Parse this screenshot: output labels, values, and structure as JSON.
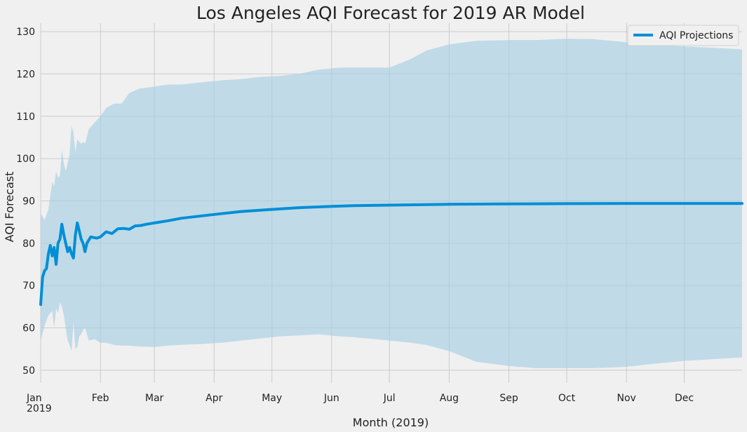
{
  "chart_data": {
    "type": "line",
    "title": "Los Angeles AQI Forecast for 2019 AR Model",
    "xlabel": "Month (2019)",
    "ylabel": "AQI Forecast",
    "x_range": [
      "2019-01-01",
      "2019-12-31"
    ],
    "ylim": [
      47,
      132
    ],
    "y_ticks": [
      50,
      60,
      70,
      80,
      90,
      100,
      110,
      120,
      130
    ],
    "x_ticks": [
      {
        "label": "Jan",
        "sublabel": "2019",
        "date": "2019-01-01"
      },
      {
        "label": "Feb",
        "date": "2019-02-01"
      },
      {
        "label": "Mar",
        "date": "2019-03-01"
      },
      {
        "label": "Apr",
        "date": "2019-04-01"
      },
      {
        "label": "May",
        "date": "2019-05-01"
      },
      {
        "label": "Jun",
        "date": "2019-06-01"
      },
      {
        "label": "Jul",
        "date": "2019-07-01"
      },
      {
        "label": "Aug",
        "date": "2019-08-01"
      },
      {
        "label": "Sep",
        "date": "2019-09-01"
      },
      {
        "label": "Oct",
        "date": "2019-10-01"
      },
      {
        "label": "Nov",
        "date": "2019-11-01"
      },
      {
        "label": "Dec",
        "date": "2019-12-01"
      }
    ],
    "grid": true,
    "legend": {
      "placement": "top-right",
      "entries": [
        "AQI Projections"
      ]
    },
    "colors": {
      "line": "#008fd5",
      "band": "#a6cee3",
      "background": "#f0f0f0",
      "grid": "#cbcbcb"
    },
    "series": [
      {
        "name": "AQI Projections",
        "x": [
          "2019-01-01",
          "2019-01-02",
          "2019-01-03",
          "2019-01-04",
          "2019-01-05",
          "2019-01-06",
          "2019-01-07",
          "2019-01-08",
          "2019-01-09",
          "2019-01-10",
          "2019-01-11",
          "2019-01-12",
          "2019-01-13",
          "2019-01-14",
          "2019-01-15",
          "2019-01-16",
          "2019-01-17",
          "2019-01-18",
          "2019-01-19",
          "2019-01-20",
          "2019-01-21",
          "2019-01-22",
          "2019-01-23",
          "2019-01-24",
          "2019-01-25",
          "2019-01-27",
          "2019-01-30",
          "2019-02-01",
          "2019-02-04",
          "2019-02-07",
          "2019-02-10",
          "2019-02-13",
          "2019-02-16",
          "2019-02-19",
          "2019-02-22",
          "2019-02-25",
          "2019-03-01",
          "2019-03-08",
          "2019-03-15",
          "2019-04-01",
          "2019-04-15",
          "2019-05-01",
          "2019-05-15",
          "2019-06-01",
          "2019-06-15",
          "2019-07-01",
          "2019-08-01",
          "2019-09-01",
          "2019-10-01",
          "2019-11-01",
          "2019-12-01",
          "2019-12-31"
        ],
        "values": [
          65.5,
          72,
          73.5,
          74,
          77.5,
          79.5,
          77,
          79,
          75,
          80,
          81,
          84.5,
          82,
          80,
          78,
          79,
          77.5,
          76.5,
          82,
          84.8,
          83,
          81,
          80,
          78,
          80,
          81.5,
          81.2,
          81.5,
          82.7,
          82.3,
          83.4,
          83.5,
          83.3,
          84.1,
          84.2,
          84.5,
          84.8,
          85.3,
          85.9,
          86.8,
          87.5,
          88,
          88.4,
          88.7,
          88.9,
          89.0,
          89.2,
          89.3,
          89.35,
          89.4,
          89.4,
          89.4
        ]
      }
    ],
    "confidence_band": {
      "x": [
        "2019-01-01",
        "2019-01-03",
        "2019-01-05",
        "2019-01-07",
        "2019-01-08",
        "2019-01-09",
        "2019-01-10",
        "2019-01-11",
        "2019-01-12",
        "2019-01-13",
        "2019-01-14",
        "2019-01-15",
        "2019-01-16",
        "2019-01-17",
        "2019-01-18",
        "2019-01-19",
        "2019-01-20",
        "2019-01-21",
        "2019-01-22",
        "2019-01-23",
        "2019-01-24",
        "2019-01-26",
        "2019-01-29",
        "2019-02-01",
        "2019-02-04",
        "2019-02-08",
        "2019-02-12",
        "2019-02-16",
        "2019-02-21",
        "2019-03-01",
        "2019-03-08",
        "2019-03-15",
        "2019-03-25",
        "2019-04-05",
        "2019-04-15",
        "2019-04-25",
        "2019-05-05",
        "2019-05-15",
        "2019-05-25",
        "2019-06-05",
        "2019-06-12",
        "2019-06-20",
        "2019-07-01",
        "2019-07-12",
        "2019-07-20",
        "2019-08-01",
        "2019-08-15",
        "2019-09-01",
        "2019-09-15",
        "2019-10-01",
        "2019-10-15",
        "2019-11-01",
        "2019-11-15",
        "2019-12-01",
        "2019-12-15",
        "2019-12-31"
      ],
      "upper": [
        87,
        85.5,
        88,
        94.5,
        93.5,
        97,
        95.5,
        96,
        102,
        99,
        97,
        99,
        101,
        107.8,
        106,
        101.5,
        104.5,
        104,
        103.5,
        104,
        103.5,
        107,
        108.5,
        110,
        112,
        113,
        113,
        115.5,
        116.5,
        117,
        117.5,
        117.5,
        118,
        118.5,
        118.8,
        119.3,
        119.5,
        120,
        121,
        121.5,
        121.5,
        121.5,
        121.5,
        123.5,
        125.5,
        127,
        127.8,
        128,
        128,
        128.3,
        128.2,
        127.5,
        126.8,
        126.5,
        126.2,
        125.8
      ],
      "lower": [
        57,
        60.5,
        63,
        64,
        60,
        64.5,
        63.5,
        66,
        65,
        63,
        60,
        57,
        56,
        54.5,
        61.5,
        55,
        55.5,
        58,
        58.5,
        59.5,
        60,
        57,
        57.3,
        56.5,
        56.5,
        56,
        55.8,
        55.8,
        55.6,
        55.5,
        55.8,
        56,
        56.2,
        56.5,
        57,
        57.5,
        58,
        58.2,
        58.5,
        58,
        57.8,
        57.5,
        57,
        56.5,
        56,
        54.5,
        52,
        51,
        50.5,
        50.5,
        50.5,
        50.8,
        51.5,
        52.2,
        52.6,
        53
      ]
    }
  }
}
